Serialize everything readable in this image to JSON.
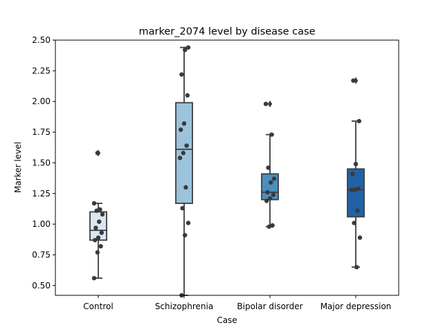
{
  "chart_data": {
    "type": "box",
    "title": "marker_2074 level by disease case",
    "xlabel": "Case",
    "ylabel": "Marker level",
    "ylim": [
      0.42,
      2.5
    ],
    "yticks": [
      "0.50",
      "0.75",
      "1.00",
      "1.25",
      "1.50",
      "1.75",
      "2.00",
      "2.25",
      "2.50"
    ],
    "yticks_values": [
      0.5,
      0.75,
      1.0,
      1.25,
      1.5,
      1.75,
      2.0,
      2.25,
      2.5
    ],
    "grid": false,
    "categories": [
      "Control",
      "Schizophrenia",
      "Bipolar disorder",
      "Major depression"
    ],
    "colors": [
      "#dae6f2",
      "#9cc3dc",
      "#4a8fc0",
      "#2162a6"
    ],
    "boxes": [
      {
        "whisker_low": 0.56,
        "q1": 0.87,
        "median": 0.95,
        "q3": 1.1,
        "whisker_high": 1.17,
        "outliers": [
          1.58
        ]
      },
      {
        "whisker_low": 0.42,
        "q1": 1.17,
        "median": 1.61,
        "q3": 1.99,
        "whisker_high": 2.44,
        "outliers": []
      },
      {
        "whisker_low": 0.98,
        "q1": 1.2,
        "median": 1.26,
        "q3": 1.41,
        "whisker_high": 1.73,
        "outliers": [
          1.98
        ]
      },
      {
        "whisker_low": 0.65,
        "q1": 1.06,
        "median": 1.28,
        "q3": 1.45,
        "whisker_high": 1.84,
        "outliers": [
          2.17
        ]
      }
    ],
    "points": [
      [
        0.56,
        0.77,
        0.82,
        0.87,
        0.89,
        0.93,
        0.97,
        1.02,
        1.08,
        1.11,
        1.12,
        1.17,
        1.58
      ],
      [
        0.42,
        0.91,
        1.01,
        1.13,
        1.3,
        1.54,
        1.58,
        1.64,
        1.77,
        1.82,
        2.05,
        2.22,
        2.42,
        2.44
      ],
      [
        0.98,
        0.99,
        1.19,
        1.21,
        1.24,
        1.26,
        1.34,
        1.37,
        1.46,
        1.73,
        1.98
      ],
      [
        0.65,
        0.89,
        1.01,
        1.11,
        1.28,
        1.28,
        1.29,
        1.41,
        1.49,
        1.84,
        2.17
      ]
    ]
  }
}
